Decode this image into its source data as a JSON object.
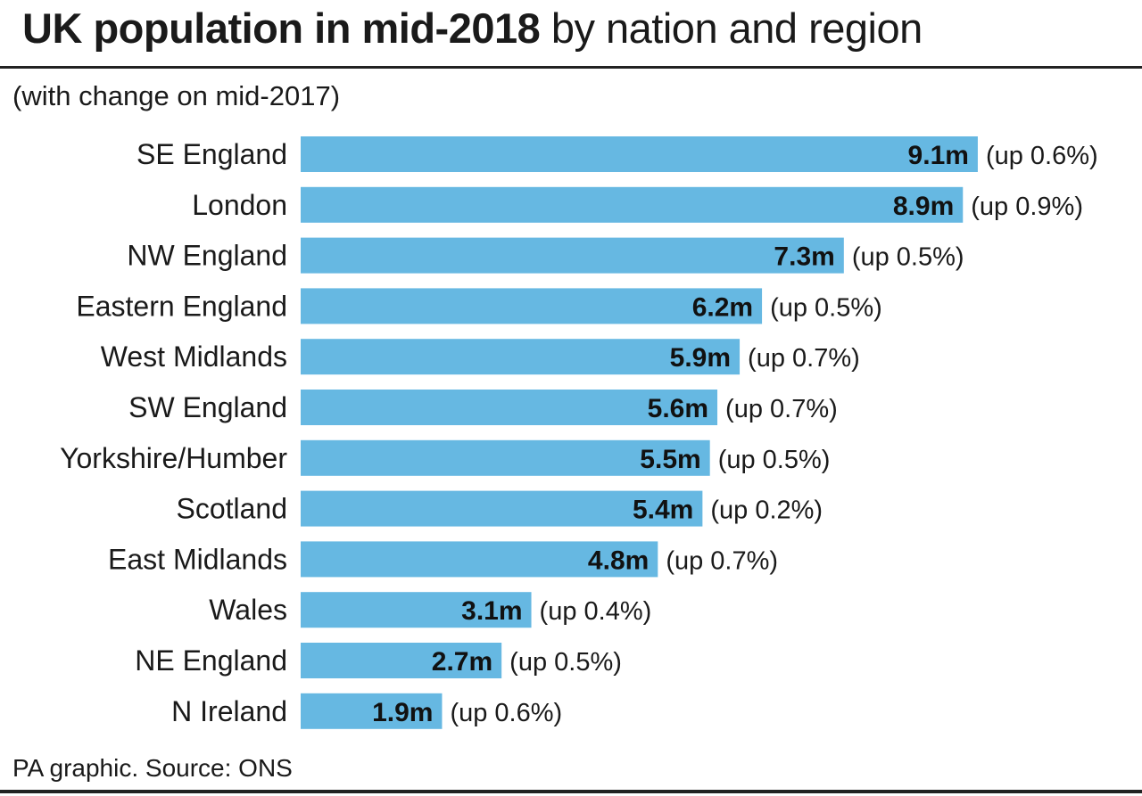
{
  "chart_data": {
    "type": "bar",
    "orientation": "horizontal",
    "title_bold": "UK population in mid-2018",
    "title_rest": " by nation and region",
    "subtitle": "(with change on mid-2017)",
    "source": "PA graphic. Source: ONS",
    "categories": [
      "SE England",
      "London",
      "NW England",
      "Eastern England",
      "West Midlands",
      "SW England",
      "Yorkshire/Humber",
      "Scotland",
      "East Midlands",
      "Wales",
      "NE England",
      "N Ireland"
    ],
    "values": [
      9.1,
      8.9,
      7.3,
      6.2,
      5.9,
      5.6,
      5.5,
      5.4,
      4.8,
      3.1,
      2.7,
      1.9
    ],
    "value_labels": [
      "9.1m",
      "8.9m",
      "7.3m",
      "6.2m",
      "5.9m",
      "5.6m",
      "5.5m",
      "5.4m",
      "4.8m",
      "3.1m",
      "2.7m",
      "1.9m"
    ],
    "change_labels": [
      "(up 0.6%)",
      "(up 0.9%)",
      "(up 0.5%)",
      "(up 0.5%)",
      "(up 0.7%)",
      "(up 0.7%)",
      "(up 0.5%)",
      "(up 0.2%)",
      "(up 0.7%)",
      "(up 0.4%)",
      "(up 0.5%)",
      "(up 0.6%)"
    ],
    "units": "millions",
    "grid": false,
    "bar_color": "#66b8e2"
  }
}
